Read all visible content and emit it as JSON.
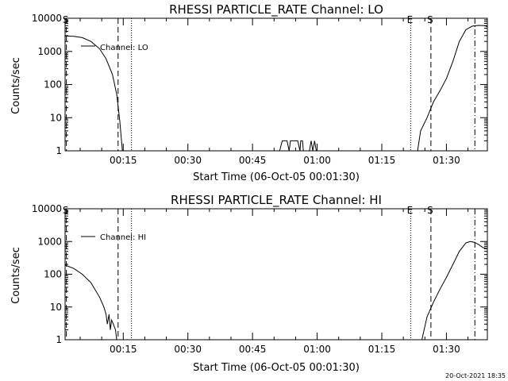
{
  "page": {
    "timestamp": "20-Oct-2021 18:35"
  },
  "chart_data": [
    {
      "type": "line",
      "title": "RHESSI PARTICLE_RATE Channel: LO",
      "xlabel": "Start Time (06-Oct-05 00:01:30)",
      "ylabel": "Counts/sec",
      "x_unit": "minutes after 00:00",
      "xlim": [
        1.5,
        99.5
      ],
      "ylim": [
        1,
        10000
      ],
      "y_scale": "log",
      "x_ticks": [
        {
          "value": 15,
          "label": "00:15"
        },
        {
          "value": 30,
          "label": "00:30"
        },
        {
          "value": 45,
          "label": "00:45"
        },
        {
          "value": 60,
          "label": "01:00"
        },
        {
          "value": 75,
          "label": "01:15"
        },
        {
          "value": 90,
          "label": "01:30"
        }
      ],
      "y_ticks": [
        {
          "value": 1,
          "label": "1"
        },
        {
          "value": 10,
          "label": "10"
        },
        {
          "value": 100,
          "label": "100"
        },
        {
          "value": 1000,
          "label": "1000"
        },
        {
          "value": 10000,
          "label": "10000"
        }
      ],
      "legend": {
        "label": "Channel: LO",
        "position": "top-left"
      },
      "markers": [
        {
          "value": 1.8,
          "label": "S",
          "style": "dashed"
        },
        {
          "value": 13.8,
          "label": "",
          "style": "dashed"
        },
        {
          "value": 16.9,
          "label": "",
          "style": "dotted"
        },
        {
          "value": 81.7,
          "label": "E",
          "style": "dotted"
        },
        {
          "value": 86.4,
          "label": "S",
          "style": "dashed"
        },
        {
          "value": 96.6,
          "label": "",
          "style": "dashdot"
        }
      ],
      "series": [
        {
          "name": "Channel: LO",
          "segments": [
            [
              [
                1.5,
                2900
              ],
              [
                3.5,
                2850
              ],
              [
                5.5,
                2600
              ],
              [
                7.5,
                2000
              ],
              [
                9.5,
                1200
              ],
              [
                11,
                600
              ],
              [
                12.5,
                200
              ],
              [
                13.5,
                50
              ],
              [
                14.2,
                8
              ],
              [
                14.6,
                2
              ],
              [
                14.8,
                1
              ]
            ],
            [
              [
                51.3,
                1
              ],
              [
                51.9,
                2
              ],
              [
                53,
                2
              ],
              [
                53.5,
                1
              ],
              [
                53.8,
                2
              ],
              [
                55.5,
                2
              ],
              [
                56,
                1
              ],
              [
                56.2,
                2
              ],
              [
                56.6,
                2
              ],
              [
                56.8,
                1
              ]
            ],
            [
              [
                58.2,
                1
              ],
              [
                58.6,
                2
              ],
              [
                59,
                1
              ],
              [
                59.4,
                2
              ],
              [
                59.8,
                1
              ]
            ],
            [
              [
                83.3,
                1
              ],
              [
                84,
                4
              ],
              [
                85.5,
                10
              ],
              [
                87,
                30
              ],
              [
                88.5,
                65
              ],
              [
                90,
                150
              ],
              [
                91.5,
                500
              ],
              [
                93,
                2000
              ],
              [
                94.5,
                4500
              ],
              [
                96,
                5800
              ],
              [
                97.5,
                6100
              ],
              [
                98.7,
                6000
              ],
              [
                99.5,
                5600
              ]
            ]
          ]
        }
      ]
    },
    {
      "type": "line",
      "title": "RHESSI PARTICLE_RATE Channel: HI",
      "xlabel": "Start Time (06-Oct-05 00:01:30)",
      "ylabel": "Counts/sec",
      "x_unit": "minutes after 00:00",
      "xlim": [
        1.5,
        99.5
      ],
      "ylim": [
        1,
        10000
      ],
      "y_scale": "log",
      "x_ticks": [
        {
          "value": 15,
          "label": "00:15"
        },
        {
          "value": 30,
          "label": "00:30"
        },
        {
          "value": 45,
          "label": "00:45"
        },
        {
          "value": 60,
          "label": "01:00"
        },
        {
          "value": 75,
          "label": "01:15"
        },
        {
          "value": 90,
          "label": "01:30"
        }
      ],
      "y_ticks": [
        {
          "value": 1,
          "label": "1"
        },
        {
          "value": 10,
          "label": "10"
        },
        {
          "value": 100,
          "label": "100"
        },
        {
          "value": 1000,
          "label": "1000"
        },
        {
          "value": 10000,
          "label": "10000"
        }
      ],
      "legend": {
        "label": "Channel: HI",
        "position": "top-left"
      },
      "markers": [
        {
          "value": 1.8,
          "label": "S",
          "style": "dashed"
        },
        {
          "value": 13.8,
          "label": "",
          "style": "dashed"
        },
        {
          "value": 16.9,
          "label": "",
          "style": "dotted"
        },
        {
          "value": 81.7,
          "label": "E",
          "style": "dotted"
        },
        {
          "value": 86.4,
          "label": "S",
          "style": "dashed"
        },
        {
          "value": 96.6,
          "label": "",
          "style": "dashdot"
        }
      ],
      "series": [
        {
          "name": "Channel: HI",
          "segments": [
            [
              [
                1.5,
                190
              ],
              [
                3.5,
                150
              ],
              [
                5.5,
                100
              ],
              [
                7.5,
                55
              ],
              [
                9.5,
                20
              ],
              [
                10.5,
                10
              ],
              [
                11,
                6
              ],
              [
                11.3,
                3
              ],
              [
                11.7,
                6
              ],
              [
                12,
                2
              ],
              [
                12.3,
                4
              ],
              [
                12.7,
                3
              ],
              [
                13.2,
                2
              ],
              [
                13.5,
                1
              ]
            ],
            [
              [
                84.3,
                1
              ],
              [
                85.5,
                5
              ],
              [
                87,
                14
              ],
              [
                88.5,
                35
              ],
              [
                90,
                80
              ],
              [
                91.5,
                200
              ],
              [
                93,
                500
              ],
              [
                94.5,
                900
              ],
              [
                95.5,
                1000
              ],
              [
                96.5,
                950
              ],
              [
                97.5,
                800
              ],
              [
                98.5,
                650
              ],
              [
                99.5,
                600
              ]
            ]
          ]
        }
      ]
    }
  ]
}
